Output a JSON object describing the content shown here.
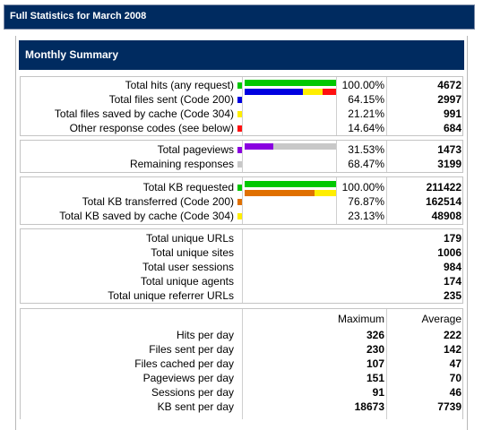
{
  "page_title": "Full Statistics for March 2008",
  "section_title": "Monthly Summary",
  "colors": {
    "header_bg": "#002b60",
    "green": "#00c800",
    "blue": "#0000e0",
    "yellow": "#ffee00",
    "red": "#ff1010",
    "purple": "#8a00e0",
    "gray": "#c8c8c8",
    "orange": "#e07000"
  },
  "hits": [
    {
      "label": "Total hits (any request)",
      "pct": "100.00%",
      "value": "4672",
      "color": "#00c800"
    },
    {
      "label": "Total files sent (Code 200)",
      "pct": "64.15%",
      "value": "2997",
      "color": "#0000e0"
    },
    {
      "label": "Total files saved by cache (Code 304)",
      "pct": "21.21%",
      "value": "991",
      "color": "#ffee00"
    },
    {
      "label": "Other response codes (see below)",
      "pct": "14.64%",
      "value": "684",
      "color": "#ff1010"
    }
  ],
  "pageviews": [
    {
      "label": "Total pageviews",
      "pct": "31.53%",
      "value": "1473",
      "color": "#8a00e0"
    },
    {
      "label": "Remaining responses",
      "pct": "68.47%",
      "value": "3199",
      "color": "#c8c8c8"
    }
  ],
  "kb": [
    {
      "label": "Total KB requested",
      "pct": "100.00%",
      "value": "211422",
      "color": "#00c800"
    },
    {
      "label": "Total KB transferred (Code 200)",
      "pct": "76.87%",
      "value": "162514",
      "color": "#e07000"
    },
    {
      "label": "Total KB saved by cache (Code 304)",
      "pct": "23.13%",
      "value": "48908",
      "color": "#ffee00"
    }
  ],
  "uniques": [
    {
      "label": "Total unique URLs",
      "value": "179"
    },
    {
      "label": "Total unique sites",
      "value": "1006"
    },
    {
      "label": "Total user sessions",
      "value": "984"
    },
    {
      "label": "Total unique agents",
      "value": "174"
    },
    {
      "label": "Total unique referrer URLs",
      "value": "235"
    }
  ],
  "per_day": {
    "max_header": "Maximum",
    "avg_header": "Average",
    "rows": [
      {
        "label": "Hits per day",
        "max": "326",
        "avg": "222"
      },
      {
        "label": "Files sent per day",
        "max": "230",
        "avg": "142"
      },
      {
        "label": "Files cached per day",
        "max": "107",
        "avg": "47"
      },
      {
        "label": "Pageviews per day",
        "max": "151",
        "avg": "70"
      },
      {
        "label": "Sessions per day",
        "max": "91",
        "avg": "46"
      },
      {
        "label": "KB sent per day",
        "max": "18673",
        "avg": "7739"
      }
    ]
  },
  "bars": {
    "hits": {
      "total": 1.0,
      "segments": [
        0.6415,
        0.2121,
        0.1464
      ]
    },
    "pageviews": [
      0.3153,
      0.6847
    ],
    "kb": {
      "total": 1.0,
      "segments": [
        0.7687,
        0.2313
      ]
    }
  }
}
